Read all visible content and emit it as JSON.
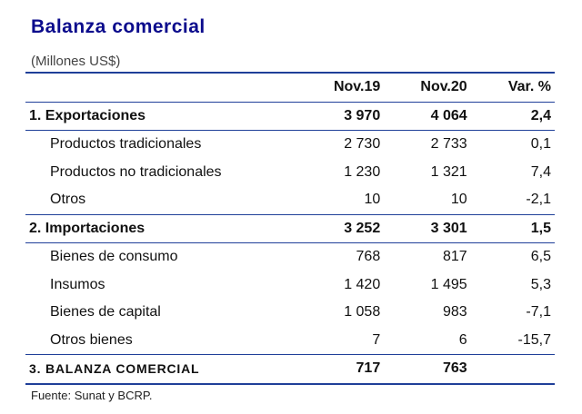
{
  "title": "Balanza comercial",
  "subtitle": "(Millones US$)",
  "columns": [
    "",
    "Nov.19",
    "Nov.20",
    "Var. %"
  ],
  "rows": [
    {
      "type": "section",
      "label": "1. Exportaciones",
      "nov19": "3 970",
      "nov20": "4 064",
      "var": "2,4"
    },
    {
      "type": "sub",
      "label": "Productos tradicionales",
      "nov19": "2 730",
      "nov20": "2 733",
      "var": "0,1"
    },
    {
      "type": "sub",
      "label": "Productos no tradicionales",
      "nov19": "1 230",
      "nov20": "1 321",
      "var": "7,4"
    },
    {
      "type": "sub",
      "label": "Otros",
      "nov19": "10",
      "nov20": "10",
      "var": "-2,1"
    },
    {
      "type": "section",
      "label": "2. Importaciones",
      "nov19": "3 252",
      "nov20": "3 301",
      "var": "1,5"
    },
    {
      "type": "sub",
      "label": "Bienes de consumo",
      "nov19": "768",
      "nov20": "817",
      "var": "6,5"
    },
    {
      "type": "sub",
      "label": "Insumos",
      "nov19": "1 420",
      "nov20": "1 495",
      "var": "5,3"
    },
    {
      "type": "sub",
      "label": "Bienes de capital",
      "nov19": "1 058",
      "nov20": "983",
      "var": "-7,1"
    },
    {
      "type": "sub",
      "label": "Otros bienes",
      "nov19": "7",
      "nov20": "6",
      "var": "-15,7"
    },
    {
      "type": "total",
      "label": "3. BALANZA COMERCIAL",
      "nov19": "717",
      "nov20": "763",
      "var": ""
    }
  ],
  "footer": "Fuente: Sunat y BCRP.",
  "colors": {
    "title": "#0b0b8c",
    "rule": "#1f3f99"
  }
}
